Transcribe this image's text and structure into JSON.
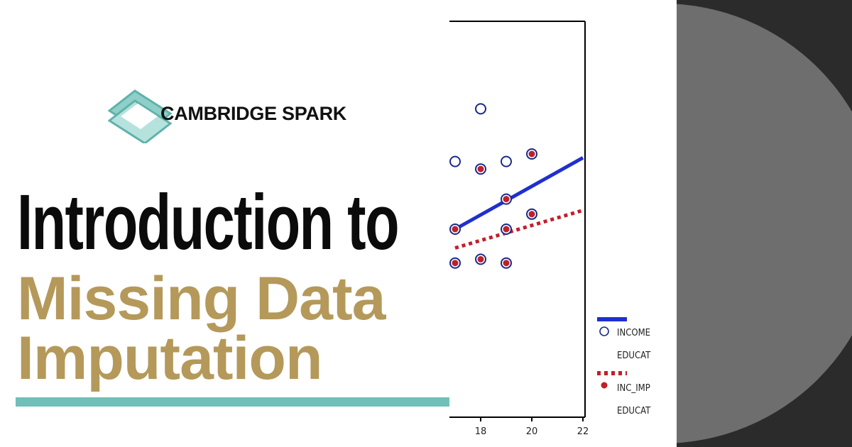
{
  "brand": {
    "name": "CAMBRIDGE SPARK",
    "logo_icon": "cambridge-spark-logo-icon"
  },
  "headline": {
    "line1": "Introduction to",
    "line2": "Missing Data",
    "line3": "Imputation"
  },
  "colors": {
    "headline_dark": "#0b0b0b",
    "headline_gold": "#b5995a",
    "accent_teal": "#6fc0b8",
    "series_income": "#1f2fd0",
    "series_inc_imp": "#c0202a",
    "background_dark": "#2b2b2b",
    "circle_gray": "#6e6e6e"
  },
  "chart_data": {
    "type": "scatter",
    "xticks": [
      "18",
      "20",
      "22"
    ],
    "xlim": [
      17,
      22
    ],
    "ylim": [
      0,
      10
    ],
    "legend": [
      {
        "label": "INCOME",
        "sublabel": "EDUCAT"
      },
      {
        "label": "INC_IMP",
        "sublabel": "EDUCAT"
      }
    ],
    "series": [
      {
        "name": "INCOME",
        "marker": "open-circle",
        "points": [
          [
            18,
            8.2
          ],
          [
            17,
            6.8
          ],
          [
            19,
            6.8
          ],
          [
            18,
            6.6
          ],
          [
            20,
            7.0
          ],
          [
            19,
            5.8
          ],
          [
            20,
            5.4
          ],
          [
            17,
            5.0
          ],
          [
            19,
            5.0
          ],
          [
            18,
            4.2
          ],
          [
            17,
            4.1
          ],
          [
            19,
            4.1
          ]
        ],
        "fit": [
          [
            17,
            5.0
          ],
          [
            22,
            6.9
          ]
        ]
      },
      {
        "name": "INC_IMP",
        "marker": "filled-dot",
        "points": [
          [
            18,
            6.6
          ],
          [
            20,
            7.0
          ],
          [
            19,
            5.8
          ],
          [
            20,
            5.4
          ],
          [
            17,
            5.0
          ],
          [
            19,
            5.0
          ],
          [
            18,
            4.2
          ],
          [
            17,
            4.1
          ],
          [
            19,
            4.1
          ]
        ],
        "fit": [
          [
            17,
            4.5
          ],
          [
            22,
            5.5
          ]
        ]
      }
    ]
  }
}
